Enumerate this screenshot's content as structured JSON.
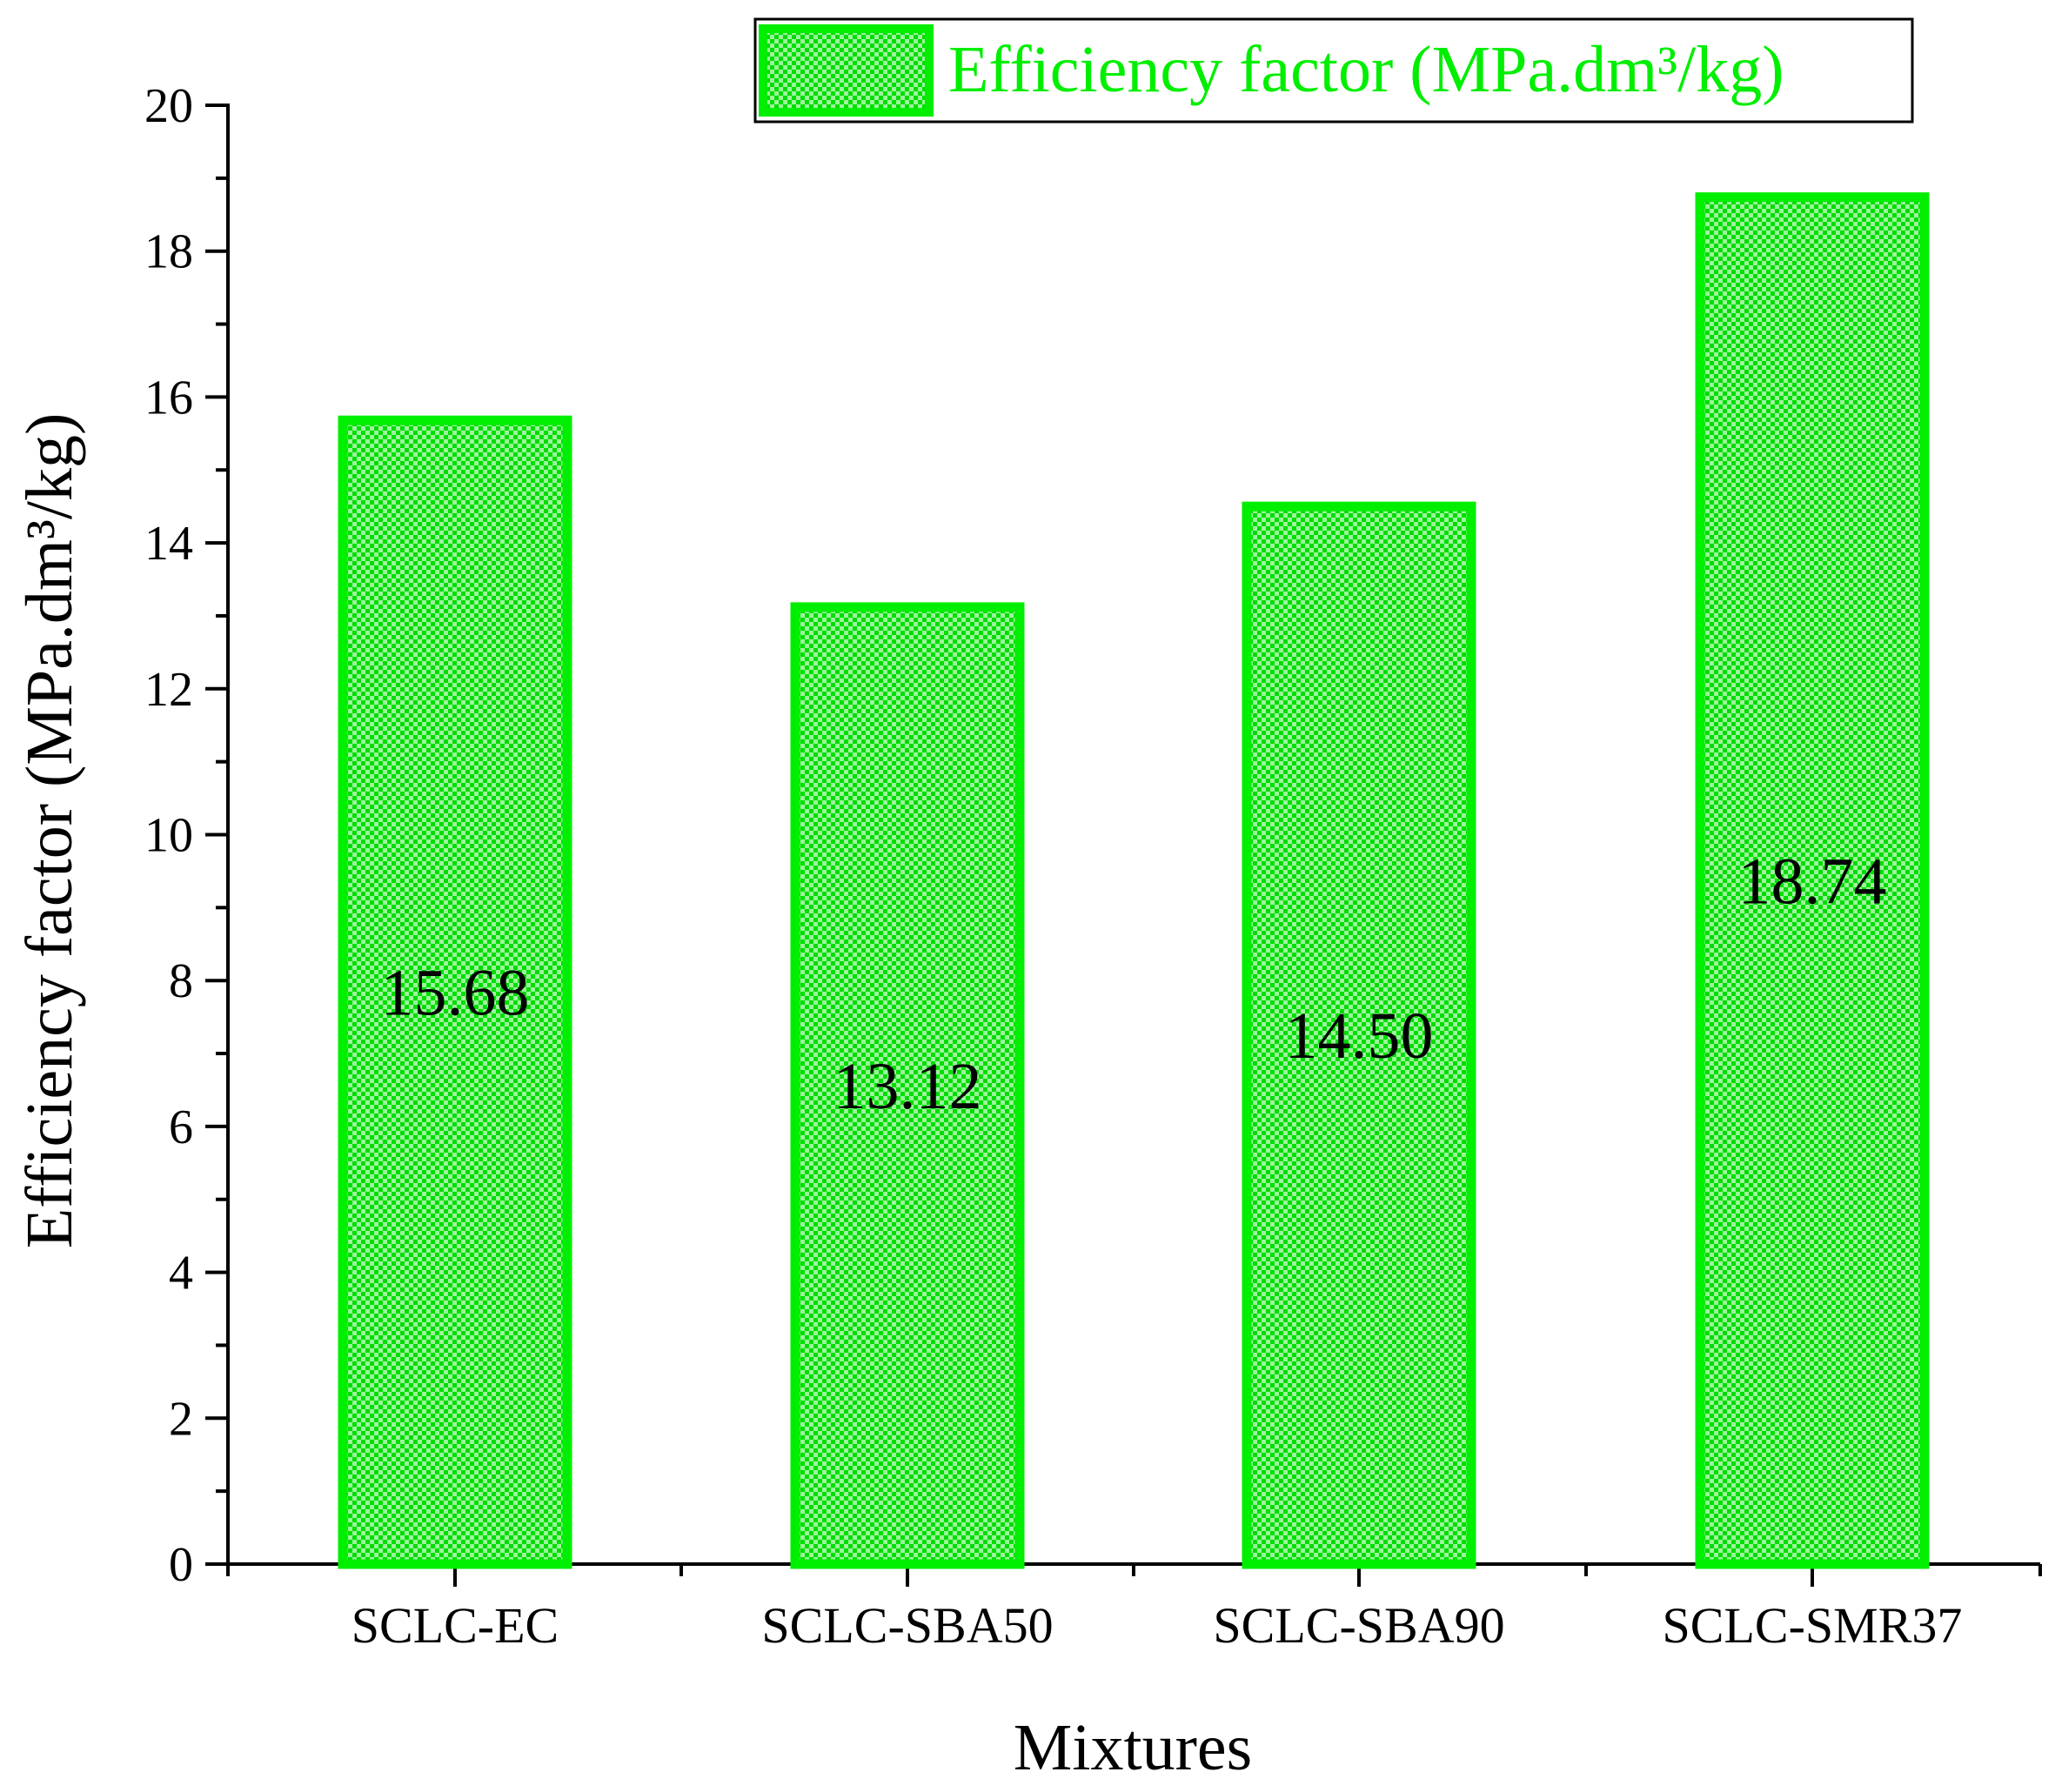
{
  "chart_data": {
    "type": "bar",
    "categories": [
      "SCLC-EC",
      "SCLC-SBA50",
      "SCLC-SBA90",
      "SCLC-SMR37"
    ],
    "series": [
      {
        "name": "Efficiency factor (MPa.dm³/kg)",
        "values": [
          15.68,
          13.12,
          14.5,
          18.74
        ],
        "value_labels": [
          "15.68",
          "13.12",
          "14.50",
          "18.74"
        ],
        "color": "#00ee00"
      }
    ],
    "title": "",
    "xlabel": "Mixtures",
    "ylabel": "Efficiency factor (MPa.dm³/kg)",
    "ylim": [
      0,
      20
    ],
    "yticks": [
      0,
      2,
      4,
      6,
      8,
      10,
      12,
      14,
      16,
      18,
      20
    ],
    "grid": false,
    "legend": {
      "position": "top-right",
      "label": "Efficiency factor (MPa.dm³/kg)"
    }
  }
}
